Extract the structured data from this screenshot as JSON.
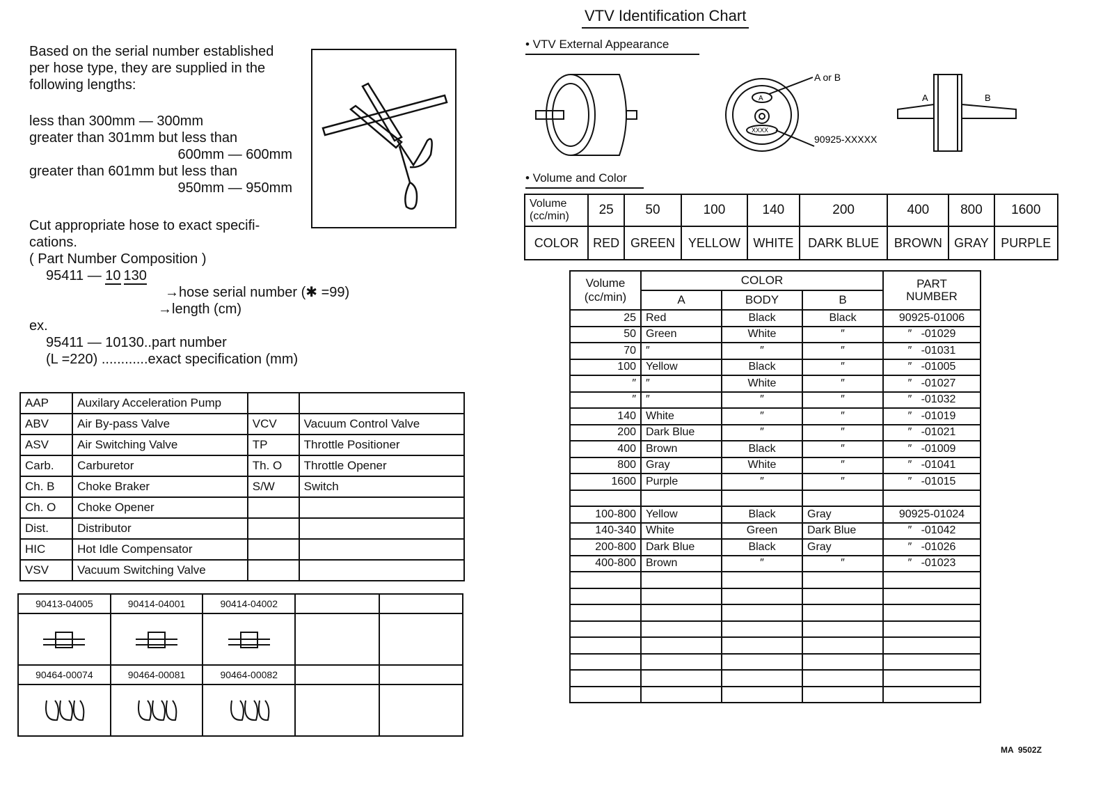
{
  "left": {
    "intro": [
      "Based on the serial number established",
      "per hose type, they are supplied in the",
      "following lengths:"
    ],
    "lengths": [
      "less than 300mm — 300mm",
      "greater than 301mm but less than",
      "600mm — 600mm",
      "greater than 601mm but less than",
      "950mm — 950mm"
    ],
    "cut": [
      "Cut appropriate hose to exact specifi-",
      "cations."
    ],
    "composition_title": "( Part Number Composition )",
    "composition_number_prefix": "95411 — ",
    "composition_number_length": "10",
    "composition_number_serial": "130",
    "serial_label": "hose serial number (✱ =99)",
    "length_label": "length (cm)",
    "ex": "ex.",
    "ex_line1": "95411 — 10130..part number",
    "ex_line2": "(L =220) ............exact specification (mm)"
  },
  "abbreviations": [
    [
      "AAP",
      "Auxilary Acceleration Pump",
      "",
      ""
    ],
    [
      "ABV",
      "Air By-pass Valve",
      "VCV",
      "Vacuum Control Valve"
    ],
    [
      "ASV",
      "Air Switching Valve",
      "TP",
      "Throttle Positioner"
    ],
    [
      "Carb.",
      "Carburetor",
      "Th. O",
      "Throttle Opener"
    ],
    [
      "Ch. B",
      "Choke Braker",
      "S/W",
      "Switch"
    ],
    [
      "Ch. O",
      "Choke Opener",
      "",
      ""
    ],
    [
      "Dist.",
      "Distributor",
      "",
      ""
    ],
    [
      "HIC",
      "Hot Idle Compensator",
      "",
      ""
    ],
    [
      "VSV",
      "Vacuum Switching Valve",
      "",
      ""
    ]
  ],
  "parts": {
    "row1": [
      "90413-04005",
      "90414-04001",
      "90414-04002",
      "",
      ""
    ],
    "row2": [
      "90464-00074",
      "90464-00081",
      "90464-00082",
      "",
      ""
    ]
  },
  "right": {
    "title": "VTV Identification Chart",
    "external_appearance": "• VTV External Appearance",
    "label_a_or_b": "A or B",
    "label_a": "A",
    "label_b": "B",
    "label_part": "90925-XXXXX",
    "label_xxxx": "XXXX",
    "volume_and_color": "• Volume and Color",
    "vc_table": {
      "volume_header": [
        "Volume",
        "(cc/min)"
      ],
      "color_header": "COLOR",
      "volumes": [
        "25",
        "50",
        "100",
        "140",
        "200",
        "400",
        "800",
        "1600"
      ],
      "colors": [
        "RED",
        "GREEN",
        "YELLOW",
        "WHITE",
        "DARK BLUE",
        "BROWN",
        "GRAY",
        "PURPLE"
      ]
    },
    "main_table": {
      "headers": {
        "volume": [
          "Volume",
          "(cc/min)"
        ],
        "color": "COLOR",
        "a": "A",
        "body": "BODY",
        "b": "B",
        "part": [
          "PART",
          "NUMBER"
        ]
      },
      "rows": [
        [
          "25",
          "Red",
          "Black",
          "Black",
          "90925-01006"
        ],
        [
          "50",
          "Green",
          "White",
          "″",
          "″   -01029"
        ],
        [
          "70",
          "″",
          "″",
          "″",
          "″   -01031"
        ],
        [
          "100",
          "Yellow",
          "Black",
          "″",
          "″   -01005"
        ],
        [
          "″",
          "″",
          "White",
          "″",
          "″   -01027"
        ],
        [
          "″",
          "″",
          "″",
          "″",
          "″   -01032"
        ],
        [
          "140",
          "White",
          "″",
          "″",
          "″   -01019"
        ],
        [
          "200",
          "Dark Blue",
          "″",
          "″",
          "″   -01021"
        ],
        [
          "400",
          "Brown",
          "Black",
          "″",
          "″   -01009"
        ],
        [
          "800",
          "Gray",
          "White",
          "″",
          "″   -01041"
        ],
        [
          "1600",
          "Purple",
          "″",
          "″",
          "″   -01015"
        ],
        [
          "",
          "",
          "",
          "",
          ""
        ],
        [
          "100-800",
          "Yellow",
          "Black",
          "Gray",
          "90925-01024"
        ],
        [
          "140-340",
          "White",
          "Green",
          "Dark Blue",
          "″   -01042"
        ],
        [
          "200-800",
          "Dark Blue",
          "Black",
          "Gray",
          "″   -01026"
        ],
        [
          "400-800",
          "Brown",
          "″",
          "″",
          "″   -01023"
        ],
        [
          "",
          "",
          "",
          "",
          ""
        ],
        [
          "",
          "",
          "",
          "",
          ""
        ],
        [
          "",
          "",
          "",
          "",
          ""
        ],
        [
          "",
          "",
          "",
          "",
          ""
        ],
        [
          "",
          "",
          "",
          "",
          ""
        ],
        [
          "",
          "",
          "",
          "",
          ""
        ],
        [
          "",
          "",
          "",
          "",
          ""
        ],
        [
          "",
          "",
          "",
          "",
          ""
        ]
      ]
    },
    "footer_code": "MA  9502Z"
  }
}
